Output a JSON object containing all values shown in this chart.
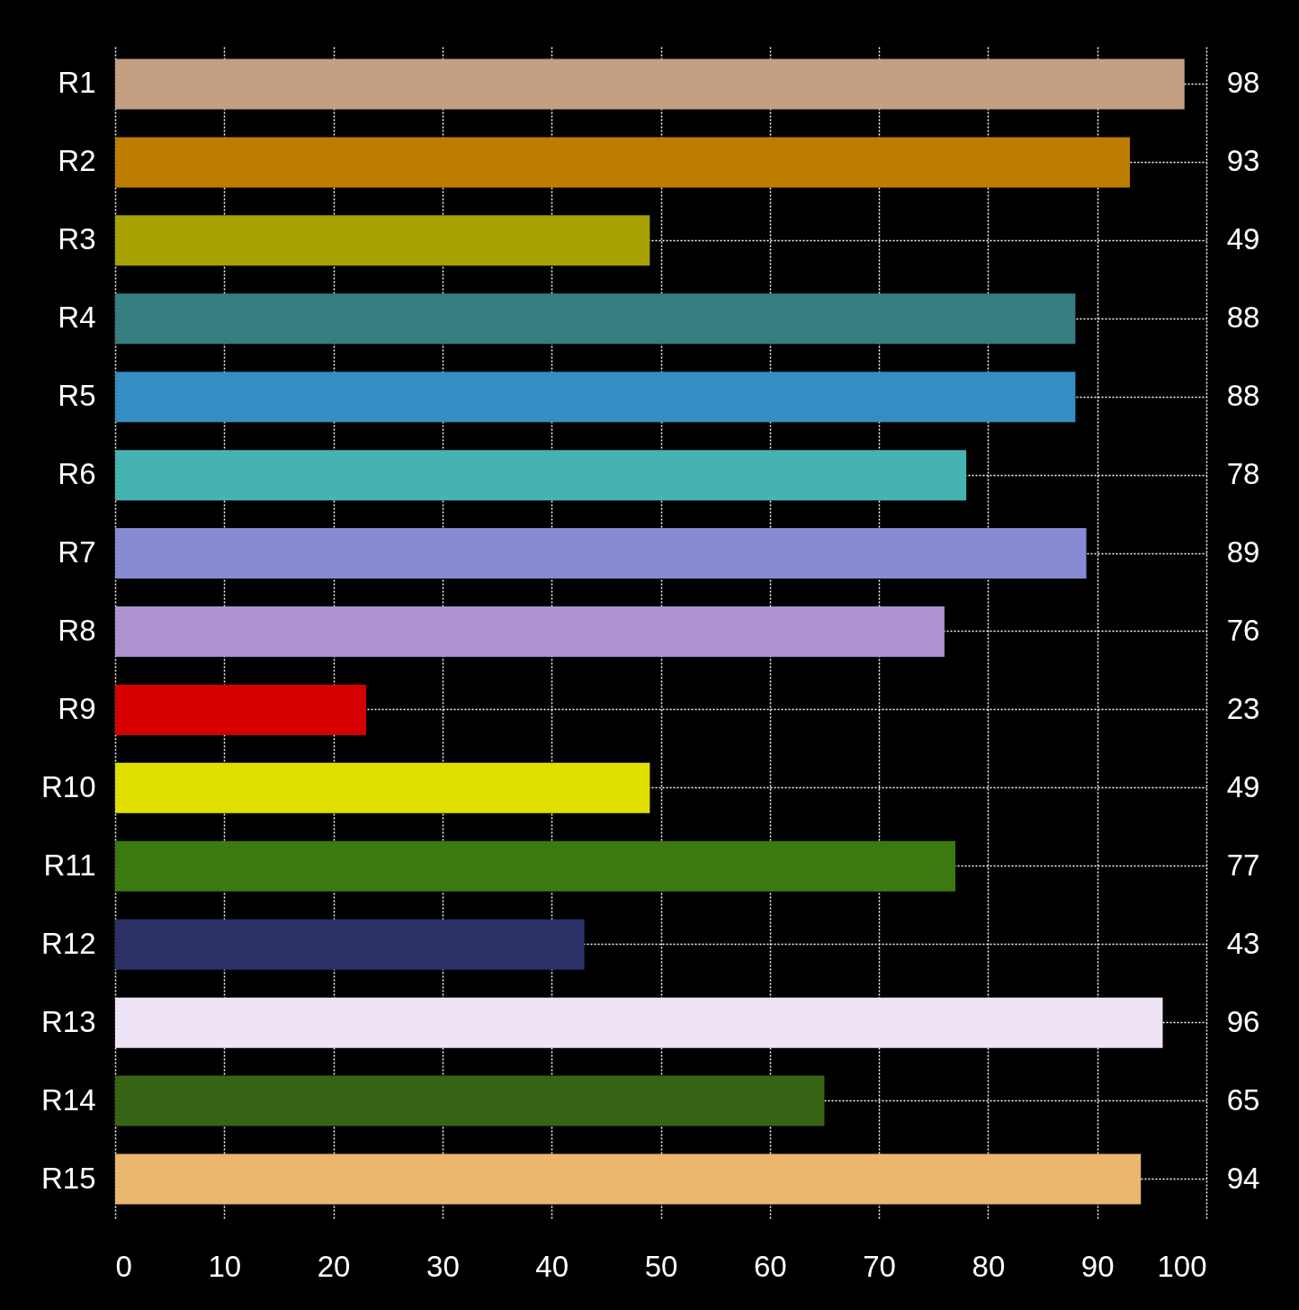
{
  "chart_data": {
    "type": "bar",
    "orientation": "horizontal",
    "categories": [
      "R1",
      "R2",
      "R3",
      "R4",
      "R5",
      "R6",
      "R7",
      "R8",
      "R9",
      "R10",
      "R11",
      "R12",
      "R13",
      "R14",
      "R15"
    ],
    "values": [
      98,
      93,
      49,
      88,
      88,
      78,
      89,
      76,
      23,
      49,
      77,
      43,
      96,
      65,
      94
    ],
    "colors": [
      "#c49f81",
      "#bd7d00",
      "#a6a000",
      "#367e80",
      "#348dc3",
      "#46b3b3",
      "#888bd4",
      "#ac93cf",
      "#d70000",
      "#e0df00",
      "#3b7a10",
      "#2b3067",
      "#efe3f6",
      "#366414",
      "#ebb76f"
    ],
    "xlim": [
      0,
      100
    ],
    "xticks": [
      0,
      10,
      20,
      30,
      40,
      50,
      60,
      70,
      80,
      90,
      100
    ],
    "grid": true,
    "data_labels": true
  }
}
